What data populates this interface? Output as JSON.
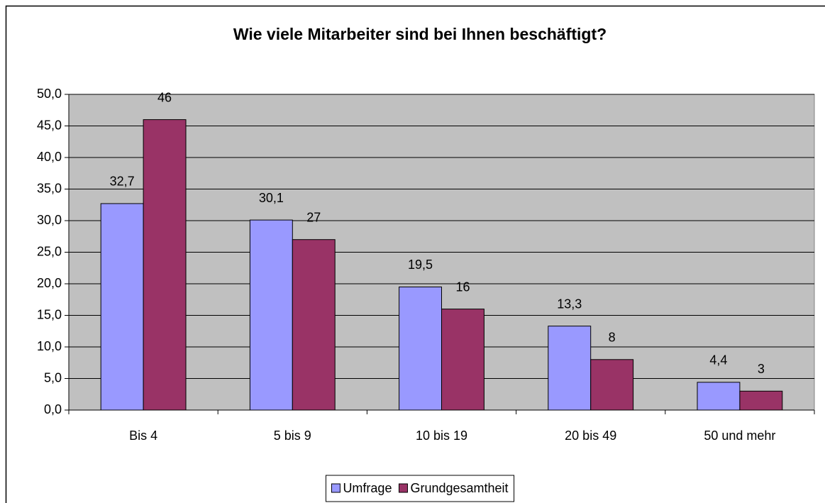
{
  "chart_data": {
    "type": "bar",
    "title": "Wie viele Mitarbeiter sind bei Ihnen beschäftigt?",
    "categories": [
      "Bis 4",
      "5 bis 9",
      "10 bis 19",
      "20 bis 49",
      "50 und mehr"
    ],
    "series": [
      {
        "name": "Umfrage",
        "color": "#9999ff",
        "values": [
          32.7,
          30.1,
          19.5,
          13.3,
          4.4
        ],
        "value_labels": [
          "32,7",
          "30,1",
          "19,5",
          "13,3",
          "4,4"
        ]
      },
      {
        "name": "Grundgesamtheit",
        "color": "#993366",
        "values": [
          46,
          27,
          16,
          8,
          3
        ]
      }
    ],
    "ylim": [
      0,
      50
    ],
    "yticks": [
      {
        "value": 0,
        "label": "0,0"
      },
      {
        "value": 5,
        "label": "5,0"
      },
      {
        "value": 10,
        "label": "10,0"
      },
      {
        "value": 15,
        "label": "15,0"
      },
      {
        "value": 20,
        "label": "20,0"
      },
      {
        "value": 25,
        "label": "25,0"
      },
      {
        "value": 30,
        "label": "30,0"
      },
      {
        "value": 35,
        "label": "35,0"
      },
      {
        "value": 40,
        "label": "40,0"
      },
      {
        "value": 45,
        "label": "45,0"
      },
      {
        "value": 50,
        "label": "50,0"
      }
    ],
    "grid": true,
    "legend": "bottom",
    "plot_background": "#c0c0c0"
  }
}
